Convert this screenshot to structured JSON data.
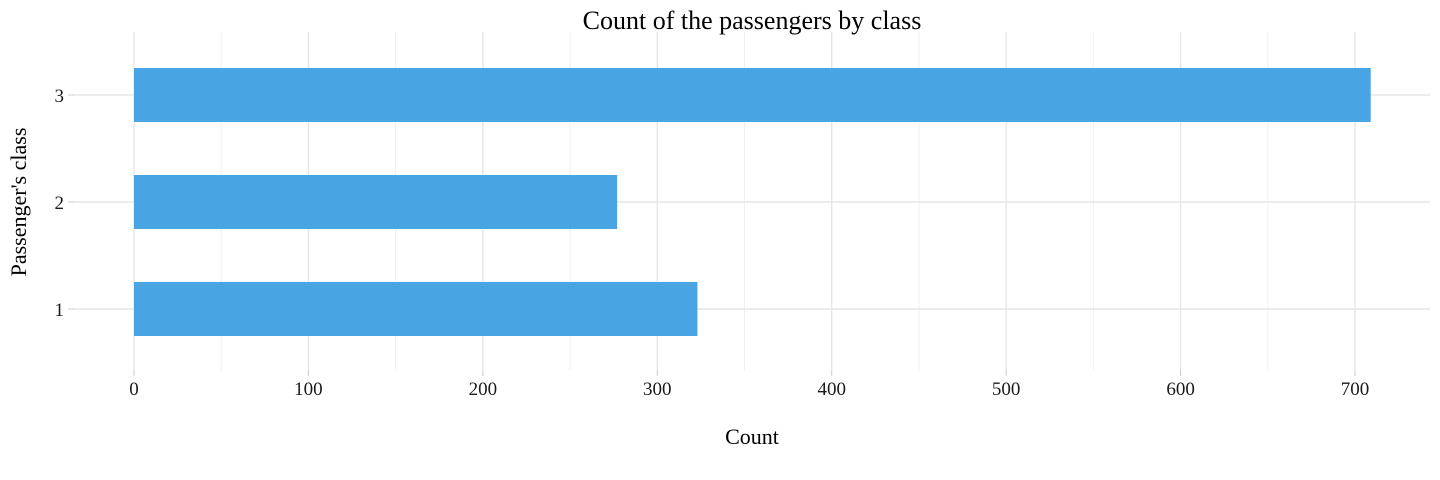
{
  "chart_data": {
    "type": "bar",
    "orientation": "horizontal",
    "title": "Count of the passengers by class",
    "xlabel": "Count",
    "ylabel": "Passenger's class",
    "categories": [
      "1",
      "2",
      "3"
    ],
    "values": [
      323,
      277,
      709
    ],
    "xlim": [
      0,
      730
    ],
    "xticks": [
      0,
      100,
      200,
      300,
      400,
      500,
      600,
      700
    ],
    "grid": true,
    "legend": "none",
    "bar_color": "#48A4E2"
  }
}
